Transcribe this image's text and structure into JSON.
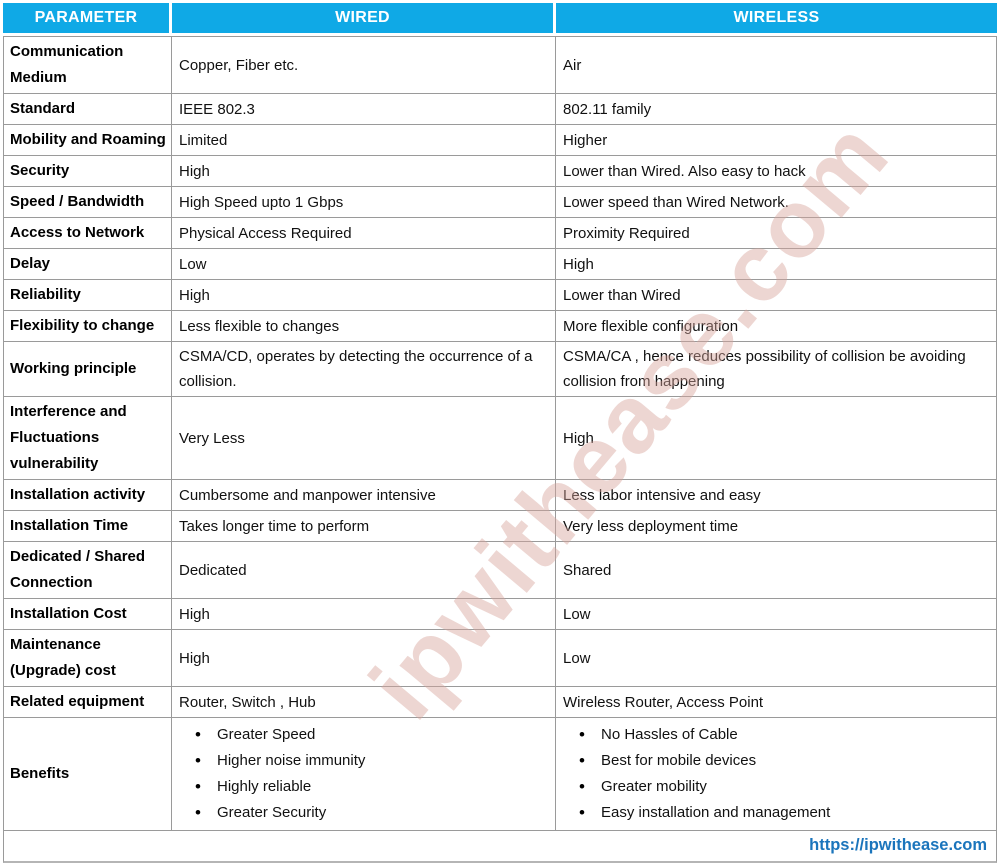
{
  "header": {
    "param": "PARAMETER",
    "wired": "WIRED",
    "wireless": "WIRELESS"
  },
  "rows": [
    {
      "param": "Communication Medium",
      "wired": "Copper, Fiber etc.",
      "wireless": "Air"
    },
    {
      "param": "Standard",
      "wired": "IEEE 802.3",
      "wireless": "802.11 family"
    },
    {
      "param": "Mobility and Roaming",
      "wired": "Limited",
      "wireless": "Higher"
    },
    {
      "param": "Security",
      "wired": "High",
      "wireless": "Lower than Wired. Also easy to hack"
    },
    {
      "param": "Speed / Bandwidth",
      "wired": "High Speed upto 1 Gbps",
      "wireless": "Lower speed than Wired Network."
    },
    {
      "param": "Access to Network",
      "wired": "Physical Access Required",
      "wireless": "Proximity Required"
    },
    {
      "param": "Delay",
      "wired": "Low",
      "wireless": "High"
    },
    {
      "param": "Reliability",
      "wired": "High",
      "wireless": "Lower than Wired"
    },
    {
      "param": "Flexibility to change",
      "wired": "Less flexible to changes",
      "wireless": "More flexible configuration"
    },
    {
      "param": "Working principle",
      "wired": "CSMA/CD, operates by detecting the occurrence of a collision.",
      "wireless": "CSMA/CA , hence reduces possibility of collision be avoiding collision from happening"
    },
    {
      "param": "Interference and Fluctuations vulnerability",
      "wired": "Very Less",
      "wireless": "High"
    },
    {
      "param": "Installation activity",
      "wired": "Cumbersome and manpower intensive",
      "wireless": "Less labor intensive and easy"
    },
    {
      "param": "Installation Time",
      "wired": "Takes longer time to perform",
      "wireless": "Very less deployment time"
    },
    {
      "param": "Dedicated / Shared Connection",
      "wired": "Dedicated",
      "wireless": "Shared"
    },
    {
      "param": "Installation Cost",
      "wired": "High",
      "wireless": "Low"
    },
    {
      "param": "Maintenance (Upgrade) cost",
      "wired": "High",
      "wireless": "Low"
    },
    {
      "param": "Related equipment",
      "wired": "Router, Switch , Hub",
      "wireless": "Wireless Router, Access Point"
    },
    {
      "param": "Benefits",
      "wired": [
        "Greater Speed",
        "Higher noise immunity",
        "Highly reliable",
        "Greater Security"
      ],
      "wireless": [
        "No Hassles of Cable",
        "Best for mobile devices",
        "Greater mobility",
        "Easy installation and management"
      ]
    }
  ],
  "footer": {
    "link": "https://ipwithease.com"
  },
  "watermark": "ipwithease.com",
  "colors": {
    "header_bg": "#0FA9E6",
    "link_blue": "#1B75BC",
    "border_gray": "#9A9A9A",
    "watermark_pink": "#D6A49B"
  }
}
